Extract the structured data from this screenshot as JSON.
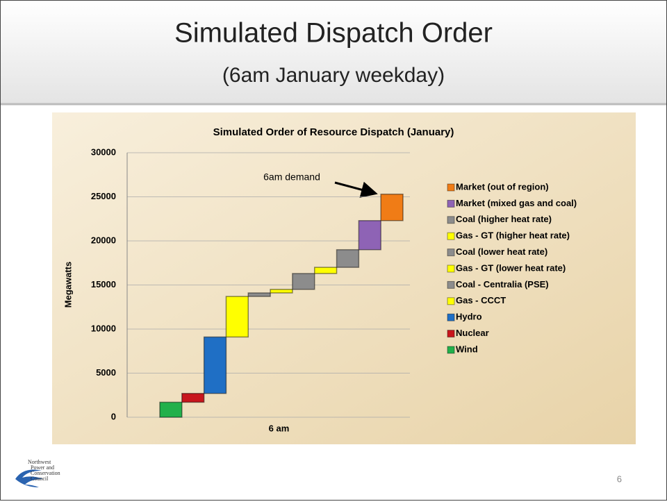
{
  "slide": {
    "title": "Simulated Dispatch Order",
    "subtitle": "(6am January weekday)",
    "page_number": "6",
    "logo": [
      "Northwest",
      "Power and",
      "Conservation",
      "Council"
    ]
  },
  "chart_data": {
    "type": "waterfall",
    "title": "Simulated Order of Resource Dispatch (January)",
    "y_label": "Megawatts",
    "categories": [
      "6 am"
    ],
    "ylim": [
      0,
      30000
    ],
    "yticks": [
      0,
      5000,
      10000,
      15000,
      20000,
      25000,
      30000
    ],
    "grid": true,
    "annotation": "6am demand",
    "series": [
      {
        "name": "Wind",
        "color": "#22b04b",
        "values": [
          1700
        ]
      },
      {
        "name": "Nuclear",
        "color": "#c8161d",
        "values": [
          1000
        ]
      },
      {
        "name": "Hydro",
        "color": "#1f6fc5",
        "values": [
          6400
        ]
      },
      {
        "name": "Gas - CCCT",
        "color": "#ffff00",
        "values": [
          4600
        ]
      },
      {
        "name": "Coal - Centralia (PSE)",
        "color": "#8c8c8c",
        "values": [
          400
        ]
      },
      {
        "name": "Gas - GT (lower heat rate)",
        "color": "#ffff00",
        "values": [
          400
        ]
      },
      {
        "name": "Coal (lower heat rate)",
        "color": "#8c8c8c",
        "values": [
          1800
        ]
      },
      {
        "name": "Gas - GT (higher heat rate)",
        "color": "#ffff00",
        "values": [
          700
        ]
      },
      {
        "name": "Coal (higher heat rate)",
        "color": "#8c8c8c",
        "values": [
          2000
        ]
      },
      {
        "name": "Market (mixed gas and coal)",
        "color": "#8e63b5",
        "values": [
          3300
        ]
      },
      {
        "name": "Market (out of region)",
        "color": "#f07c16",
        "values": [
          3000
        ]
      }
    ]
  }
}
